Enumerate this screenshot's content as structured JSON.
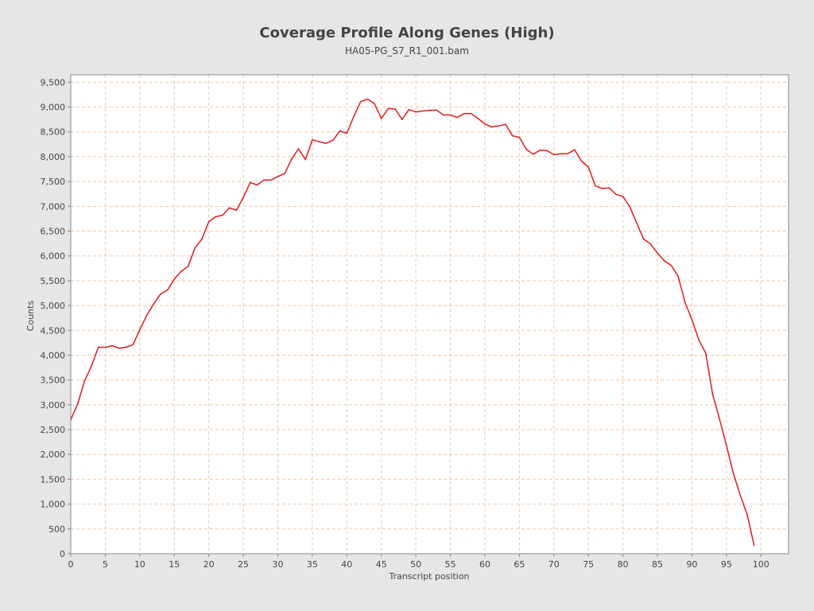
{
  "chart_data": {
    "type": "line",
    "title": "Coverage Profile Along Genes (High)",
    "subtitle": "HA05-PG_S7_R1_001.bam",
    "xlabel": "Transcript position",
    "ylabel": "Counts",
    "xlim": [
      0,
      104
    ],
    "ylim": [
      0,
      9650
    ],
    "xticks": [
      0,
      5,
      10,
      15,
      20,
      25,
      30,
      35,
      40,
      45,
      50,
      55,
      60,
      65,
      70,
      75,
      80,
      85,
      90,
      95,
      100
    ],
    "xtick_labels": [
      "0",
      "5",
      "10",
      "15",
      "20",
      "25",
      "30",
      "35",
      "40",
      "45",
      "50",
      "55",
      "60",
      "65",
      "70",
      "75",
      "80",
      "85",
      "90",
      "95",
      "100"
    ],
    "yticks": [
      0,
      500,
      1000,
      1500,
      2000,
      2500,
      3000,
      3500,
      4000,
      4500,
      5000,
      5500,
      6000,
      6500,
      7000,
      7500,
      8000,
      8500,
      9000,
      9500
    ],
    "ytick_labels": [
      "0",
      "500",
      "1,000",
      "1,500",
      "2,000",
      "2,500",
      "3,000",
      "3,500",
      "4,000",
      "4,500",
      "5,000",
      "5,500",
      "6,000",
      "6,500",
      "7,000",
      "7,500",
      "8,000",
      "8,500",
      "9,000",
      "9,500"
    ],
    "grid": true,
    "colors": {
      "line": "#e31a1c",
      "grid": "#f0c8a8",
      "plot_bg": "#ffffff",
      "frame": "#888888",
      "page_bg": "#e6e6e6"
    },
    "series": [
      {
        "x": [
          0,
          1,
          2,
          3,
          4,
          5,
          6,
          7,
          8,
          9,
          10,
          11,
          12,
          13,
          14,
          15,
          16,
          17,
          18,
          19,
          20,
          21,
          22,
          23,
          24,
          25,
          26,
          27,
          28,
          29,
          30,
          31,
          32,
          33,
          34,
          35,
          36,
          37,
          38,
          39,
          40,
          41,
          42,
          43,
          44,
          45,
          46,
          47,
          48,
          49,
          50,
          51,
          52,
          53,
          54,
          55,
          56,
          57,
          58,
          59,
          60,
          61,
          62,
          63,
          64,
          65,
          66,
          67,
          68,
          69,
          70,
          71,
          72,
          73,
          74,
          75,
          76,
          77,
          78,
          79,
          80,
          81,
          82,
          83,
          84,
          85,
          86,
          87,
          88,
          89,
          90,
          91,
          92,
          93,
          94,
          95,
          96,
          97,
          98,
          99
        ],
        "y": [
          2700,
          3020,
          3480,
          3780,
          4160,
          4160,
          4190,
          4140,
          4160,
          4210,
          4510,
          4800,
          5030,
          5230,
          5310,
          5530,
          5690,
          5790,
          6160,
          6340,
          6690,
          6790,
          6820,
          6970,
          6920,
          7180,
          7480,
          7430,
          7530,
          7530,
          7600,
          7660,
          7950,
          8160,
          7940,
          8340,
          8300,
          8270,
          8330,
          8520,
          8470,
          8810,
          9110,
          9160,
          9070,
          8770,
          8970,
          8960,
          8750,
          8950,
          8900,
          8920,
          8930,
          8940,
          8840,
          8840,
          8790,
          8870,
          8870,
          8770,
          8660,
          8600,
          8620,
          8650,
          8420,
          8390,
          8150,
          8050,
          8130,
          8120,
          8040,
          8060,
          8060,
          8140,
          7910,
          7790,
          7410,
          7360,
          7370,
          7240,
          7200,
          6990,
          6660,
          6340,
          6240,
          6060,
          5900,
          5810,
          5590,
          5060,
          4720,
          4310,
          4040,
          3210,
          2710,
          2180,
          1620,
          1180,
          790,
          170
        ]
      }
    ]
  }
}
